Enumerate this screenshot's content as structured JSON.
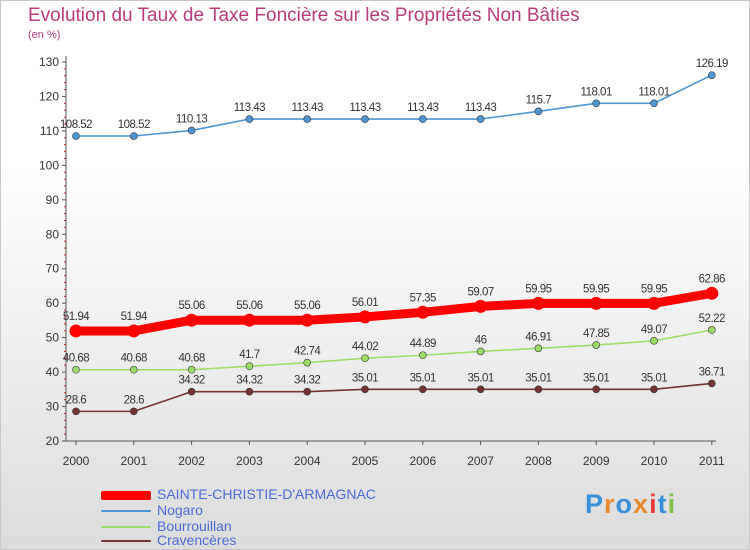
{
  "chart_data": {
    "type": "line",
    "title": "Evolution du Taux de Taxe Foncière sur les Propriétés Non Bâties",
    "subtitle": "(en %)",
    "xlabel": "",
    "ylabel": "",
    "categories": [
      "2000",
      "2001",
      "2002",
      "2003",
      "2004",
      "2005",
      "2006",
      "2007",
      "2008",
      "2009",
      "2010",
      "2011"
    ],
    "ylim": [
      20,
      130
    ],
    "yticks": [
      20,
      30,
      40,
      50,
      60,
      70,
      80,
      90,
      100,
      110,
      120,
      130
    ],
    "grid": false,
    "legend_position": "bottom-left",
    "series": [
      {
        "name": "SAINTE-CHRISTIE-D'ARMAGNAC",
        "color": "#ff0000",
        "values": [
          51.94,
          51.94,
          55.06,
          55.06,
          55.06,
          56.01,
          57.35,
          59.07,
          59.95,
          59.95,
          59.95,
          62.86
        ],
        "labels": [
          "51.94",
          "51.94",
          "55.06",
          "55.06",
          "55.06",
          "56.01",
          "57.35",
          "59.07",
          "59.95",
          "59.95",
          "59.95",
          "62.86"
        ]
      },
      {
        "name": "Nogaro",
        "color": "#4d96d4",
        "values": [
          108.52,
          108.52,
          110.13,
          113.43,
          113.43,
          113.43,
          113.43,
          113.43,
          115.7,
          118.01,
          118.01,
          126.19
        ],
        "labels": [
          "108.52",
          "108.52",
          "110.13",
          "113.43",
          "113.43",
          "113.43",
          "113.43",
          "113.43",
          "115.7",
          "118.01",
          "118.01",
          "126.19"
        ]
      },
      {
        "name": "Bourrouillan",
        "color": "#99dd66",
        "values": [
          40.68,
          40.68,
          40.68,
          41.7,
          42.74,
          44.02,
          44.89,
          46,
          46.91,
          47.85,
          49.07,
          52.22
        ],
        "labels": [
          "40.68",
          "40.68",
          "40.68",
          "41.7",
          "42.74",
          "44.02",
          "44.89",
          "46",
          "46.91",
          "47.85",
          "49.07",
          "52.22"
        ]
      },
      {
        "name": "Cravencères",
        "color": "#773333",
        "values": [
          28.6,
          28.6,
          34.32,
          34.32,
          34.32,
          35.01,
          35.01,
          35.01,
          35.01,
          35.01,
          35.01,
          36.71
        ],
        "labels": [
          "28.6",
          "28.6",
          "34.32",
          "34.32",
          "34.32",
          "35.01",
          "35.01",
          "35.01",
          "35.01",
          "35.01",
          "35.01",
          "36.71"
        ]
      }
    ]
  },
  "logo": {
    "text": "Proxiti",
    "colors": [
      "#3a8fd9",
      "#e8892a",
      "#3a8fd9",
      "#e8892a",
      "#e63b3b",
      "#3a8fd9",
      "#7dc242"
    ]
  }
}
